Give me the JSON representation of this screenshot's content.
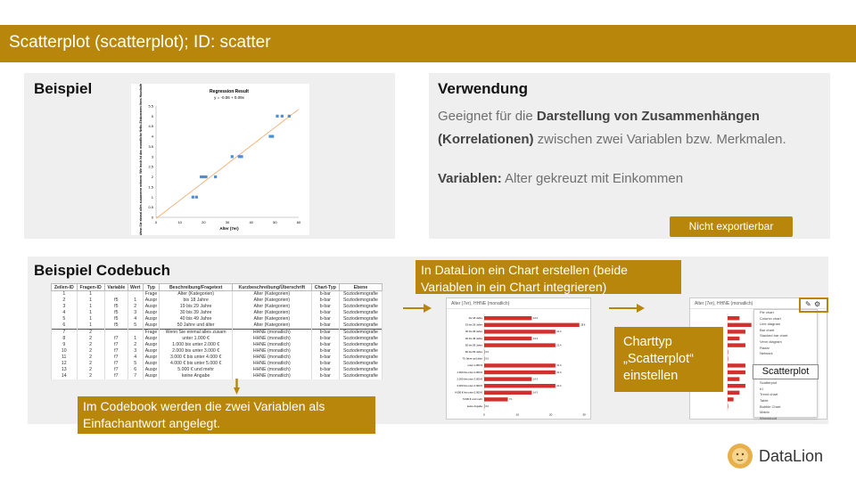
{
  "title": "Scatterplot (scatterplot); ID: scatter",
  "beispiel": {
    "heading": "Beispiel",
    "chart": {
      "title": "Regression Result",
      "equation": "y = -0.06 + 0.09x",
      "ylabel": "Wenn Sie einmal alles zusammen nehmen: Wie hoch ist das monatliche Netto-Einkommen Ihres Haushalts insgesamt?",
      "xlabel": "Alter (7er)"
    }
  },
  "chart_data": {
    "type": "scatter",
    "title": "Regression Result",
    "xlabel": "Alter (7er)",
    "xlim": [
      0,
      60
    ],
    "ylim": [
      0,
      5.5
    ],
    "x_ticks": [
      "0",
      "10",
      "20",
      "30",
      "40",
      "50",
      "60"
    ],
    "y_ticks": [
      "0",
      "0.5",
      "1",
      "1.5",
      "2",
      "2.5",
      "3",
      "3.5",
      "4",
      "4.5",
      "5",
      "5.5"
    ],
    "points": [
      {
        "x": 15.5,
        "y": 1
      },
      {
        "x": 17,
        "y": 1
      },
      {
        "x": 19,
        "y": 2
      },
      {
        "x": 20,
        "y": 2
      },
      {
        "x": 21,
        "y": 2
      },
      {
        "x": 25,
        "y": 2
      },
      {
        "x": 32,
        "y": 3
      },
      {
        "x": 35,
        "y": 3
      },
      {
        "x": 36,
        "y": 3
      },
      {
        "x": 48,
        "y": 4
      },
      {
        "x": 49,
        "y": 4
      },
      {
        "x": 51,
        "y": 5
      },
      {
        "x": 53,
        "y": 5
      },
      {
        "x": 56,
        "y": 5
      }
    ],
    "trendline": {
      "intercept": -0.06,
      "slope": 0.09,
      "x_from": 0,
      "x_to": 60
    }
  },
  "verwendung": {
    "heading": "Verwendung",
    "text_pre": "Geeignet für die ",
    "text_bold": "Darstellung von Zusammenhängen (Korrelationen)",
    "text_post": " zwischen zwei Variablen bzw. Merkmalen.",
    "vars_label": "Variablen:",
    "vars_value": " Alter gekreuzt mit Einkommen",
    "export_button": "Nicht exportierbar"
  },
  "codebuch": {
    "heading": "Beispiel Codebuch",
    "columns": [
      "Zeilen-ID",
      "Fragen-ID",
      "Variable",
      "Wert",
      "Typ",
      "Beschreibung/Fragetext",
      "Kurzbeschreibung/Überschrift",
      "Chart-Typ",
      "Ebene"
    ],
    "rows": [
      [
        "1",
        "1",
        "",
        "",
        "Frage",
        "Alter (Kategorien)",
        "Alter (Kategorien)",
        "b-bar",
        "Soziodemografie"
      ],
      [
        "2",
        "1",
        "f5",
        "1",
        "Auspr",
        "bis 18 Jahre",
        "Alter (Kategorien)",
        "b-bar",
        "Soziodemografie"
      ],
      [
        "3",
        "1",
        "f5",
        "2",
        "Auspr",
        "19 bis 29 Jahre",
        "Alter (Kategorien)",
        "b-bar",
        "Soziodemografie"
      ],
      [
        "4",
        "1",
        "f5",
        "3",
        "Auspr",
        "30 bis 39 Jahre",
        "Alter (Kategorien)",
        "b-bar",
        "Soziodemografie"
      ],
      [
        "5",
        "1",
        "f5",
        "4",
        "Auspr",
        "40 bis 49 Jahre",
        "Alter (Kategorien)",
        "b-bar",
        "Soziodemografie"
      ],
      [
        "6",
        "1",
        "f5",
        "5",
        "Auspr",
        "50 Jahre und älter",
        "Alter (Kategorien)",
        "b-bar",
        "Soziodemografie"
      ],
      [
        "7",
        "2",
        "",
        "",
        "Frage",
        "Wenn Sie einmal alles zusam",
        "HHNE (monatlich)",
        "b-bar",
        "Soziodemografie"
      ],
      [
        "8",
        "2",
        "f7",
        "1",
        "Auspr",
        "unter 1.000 €",
        "HHNE (monatlich)",
        "b-bar",
        "Soziodemografie"
      ],
      [
        "9",
        "2",
        "f7",
        "2",
        "Auspr",
        "1.000 bis unter 2.000 €",
        "HHNE (monatlich)",
        "b-bar",
        "Soziodemografie"
      ],
      [
        "10",
        "2",
        "f7",
        "3",
        "Auspr",
        "2.000 bis unter 3.000 €",
        "HHNE (monatlich)",
        "b-bar",
        "Soziodemografie"
      ],
      [
        "11",
        "2",
        "f7",
        "4",
        "Auspr",
        "3.000 € bis unter 4.000 €",
        "HHNE (monatlich)",
        "b-bar",
        "Soziodemografie"
      ],
      [
        "12",
        "2",
        "f7",
        "5",
        "Auspr",
        "4.000 € bis unter 5.000 €",
        "HHNE (monatlich)",
        "b-bar",
        "Soziodemografie"
      ],
      [
        "13",
        "2",
        "f7",
        "6",
        "Auspr",
        "5.000 € und mehr",
        "HHNE (monatlich)",
        "b-bar",
        "Soziodemografie"
      ],
      [
        "14",
        "2",
        "f7",
        "7",
        "Auspr",
        "keine Angabe",
        "HHNE (monatlich)",
        "b-bar",
        "Soziodemografie"
      ]
    ],
    "note_codebook": "Im Codebook werden die zwei Variablen als Einfachantwort angelegt.",
    "note_chart": "In DataLion ein Chart erstellen (beide Variablen in ein Chart integrieren)",
    "note_type_line1": "Charttyp",
    "note_type_line2": "„Scatterplot“",
    "note_type_line3": "einstellen"
  },
  "screenshot_chart": {
    "header": "Alter (7er), HHNE (monatlich)",
    "bars": [
      {
        "label": "bis 18 Jahre",
        "value": 14.3
      },
      {
        "label": "19 bis 29 Jahre",
        "value": 28.6
      },
      {
        "label": "30 bis 39 Jahre",
        "value": 21.4
      },
      {
        "label": "40 bis 49 Jahre",
        "value": 14.3
      },
      {
        "label": "50 bis 59 Jahre",
        "value": 21.4
      },
      {
        "label": "60 bis 69 Jahre",
        "value": 0.0
      },
      {
        "label": "70 Jahre und älter",
        "value": 0.0
      },
      {
        "label": "unter 1.000 €",
        "value": 21.4
      },
      {
        "label": "1.000 bis unter 2.000 €",
        "value": 21.4
      },
      {
        "label": "2.000 bis unter 3.000 €",
        "value": 14.3
      },
      {
        "label": "3.000 bis unter 4.000 €",
        "value": 21.4
      },
      {
        "label": "4.000 € bis unter 5.000 €",
        "value": 14.3
      },
      {
        "label": "5.000 € und mehr",
        "value": 7.1
      },
      {
        "label": "keine Angabe",
        "value": 0.0
      }
    ],
    "axis_ticks": [
      "0",
      "10",
      "20",
      "30"
    ]
  },
  "screenshot_menu": {
    "header": "Alter (7er), HHNE (monatlich)",
    "items": [
      "Pie chart",
      "Column chart",
      "Line diagram",
      "Bar chart",
      "Stacked bar chart",
      "Venn diagram",
      "Radar",
      "Network",
      "",
      "",
      "",
      "",
      "Scatterplot",
      "KI",
      "Trend chart",
      "Table",
      "Bubble Chart",
      "Matrix",
      "Wordcloud"
    ],
    "selected": "Scatterplot"
  },
  "brand": {
    "name": "DataLion",
    "accent": "#b8860b",
    "bar_color": "#d32f2f",
    "point_color": "#4a90d9",
    "trend_color": "#f4a460"
  }
}
